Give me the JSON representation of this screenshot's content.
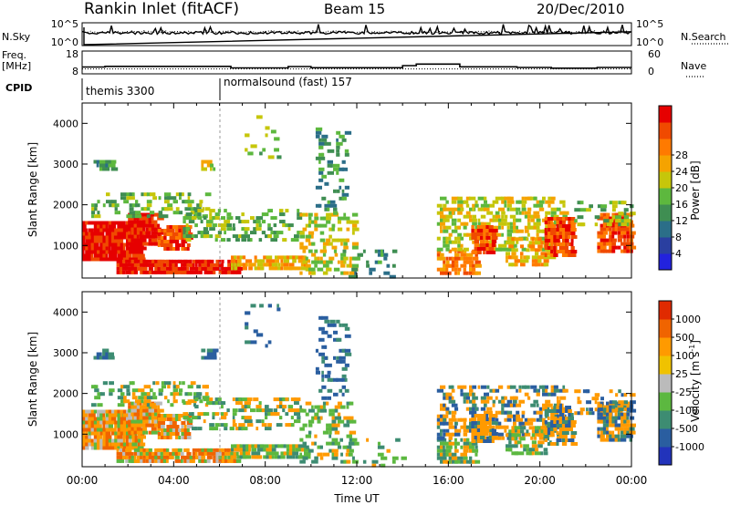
{
  "header": {
    "station": "Rankin Inlet (fitACF)",
    "beam": "Beam 15",
    "date": "20/Dec/2010"
  },
  "chart_data": [
    {
      "type": "line",
      "name": "noise-panel",
      "left_label": "N.Sky",
      "left_ticks": [
        "10^5",
        "10^0"
      ],
      "right_label": "N.Search",
      "right_ticks": [
        "10^5",
        "10^0"
      ],
      "series": [
        {
          "name": "N.Sky",
          "style": "solid"
        },
        {
          "name": "N.Search",
          "style": "dotted"
        }
      ]
    },
    {
      "type": "line",
      "name": "freq-panel",
      "left_label_line1": "Freq.",
      "left_label_line2": "[MHz]",
      "left_ticks": [
        18,
        8
      ],
      "right_label": "Nave",
      "right_ticks": [
        60,
        0
      ],
      "x": [
        0,
        1,
        6.5,
        9,
        10,
        14,
        14.6,
        16.5,
        19,
        20.5,
        22.5,
        24
      ],
      "freq_mhz": [
        11,
        11.3,
        10.6,
        11.2,
        10.7,
        11.6,
        12.3,
        11.1,
        10.8,
        10.5,
        10.8,
        10.8
      ],
      "nave_line": 13
    },
    {
      "type": "table",
      "name": "cpid-panel",
      "label": "CPID",
      "segments": [
        {
          "start_hour": 0,
          "text": "themis 3300"
        },
        {
          "start_hour": 6,
          "text": "normalsound (fast) 157"
        }
      ]
    },
    {
      "type": "heatmap",
      "name": "power-panel",
      "ylabel": "Slant Range [km]",
      "xlim": [
        0,
        24
      ],
      "ylim": [
        200,
        4500
      ],
      "yticks": [
        1000,
        2000,
        3000,
        4000
      ],
      "colorbar_label": "Power [dB]",
      "colorbar_ticks": [
        4,
        8,
        12,
        16,
        20,
        24,
        28
      ],
      "colorbar_colors": [
        "#2222dd",
        "#2a3fa0",
        "#2b6e88",
        "#3f8e52",
        "#5db83e",
        "#c6c60a",
        "#f5a300",
        "#ff7a00",
        "#f04a00",
        "#e60000"
      ]
    },
    {
      "type": "heatmap",
      "name": "velocity-panel",
      "ylabel": "Slant Range [km]",
      "xlabel": "Time UT",
      "xlim": [
        0,
        24
      ],
      "ylim": [
        200,
        4500
      ],
      "yticks": [
        1000,
        2000,
        3000,
        4000
      ],
      "xticks": [
        "00:00",
        "04:00",
        "08:00",
        "12:00",
        "16:00",
        "20:00",
        "00:00"
      ],
      "colorbar_label_main": "Velocity [m s",
      "colorbar_label_sup": "-1",
      "colorbar_label_end": "]",
      "colorbar_ticks": [
        "1000",
        "500",
        "100",
        "25",
        "-25",
        "-100",
        "-500",
        "-1000"
      ],
      "colorbar_colors": [
        "#2233bb",
        "#2a5ea0",
        "#3d8c72",
        "#5cb840",
        "#bbbbbb",
        "#f0c200",
        "#ff9a00",
        "#f06400",
        "#e02a00"
      ]
    }
  ]
}
